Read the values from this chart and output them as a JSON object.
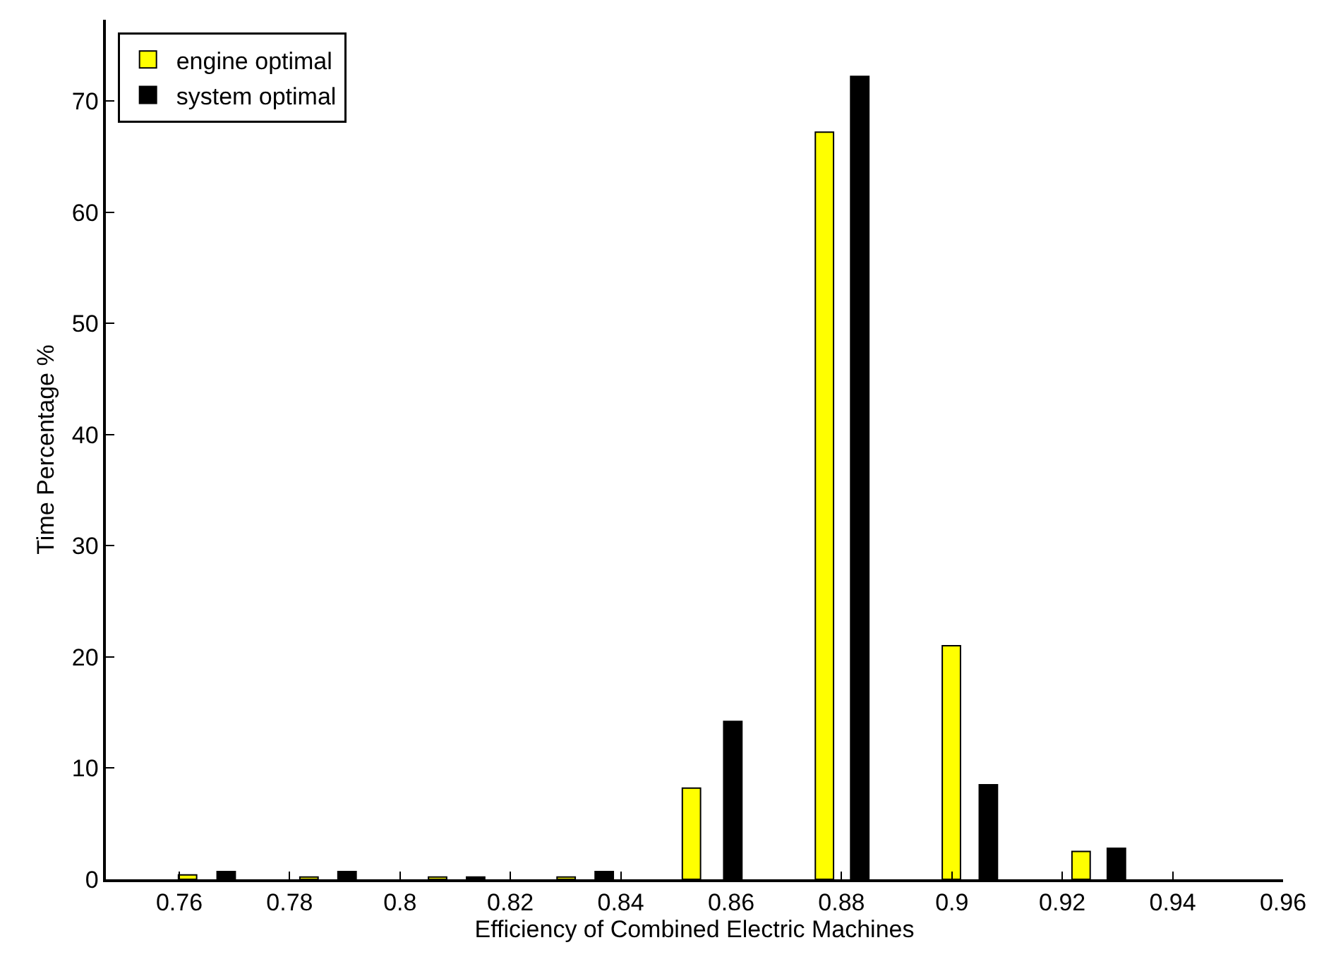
{
  "chart_data": {
    "type": "bar",
    "xlabel": "Efficiency of Combined Electric Machines",
    "ylabel": "Time Percentage %",
    "series": [
      {
        "name": "engine optimal",
        "color": "#ffff00",
        "x": [
          0.7615,
          0.7835,
          0.8068,
          0.8301,
          0.8528,
          0.8769,
          0.8999,
          0.9234
        ],
        "values": [
          0.4,
          0.2,
          0.2,
          0.2,
          8.2,
          67.2,
          21.0,
          2.5
        ]
      },
      {
        "name": "system optimal",
        "color": "#000000",
        "x": [
          0.7685,
          0.7904,
          0.8137,
          0.837,
          0.8603,
          0.8833,
          0.9066,
          0.9298
        ],
        "values": [
          0.7,
          0.7,
          0.2,
          0.7,
          14.2,
          72.2,
          8.5,
          2.8
        ]
      }
    ],
    "xlim": [
      0.7467,
      0.96
    ],
    "xticks": [
      {
        "value": 0.76,
        "label": "0.76"
      },
      {
        "value": 0.78,
        "label": "0.78"
      },
      {
        "value": 0.8,
        "label": "0.8"
      },
      {
        "value": 0.82,
        "label": "0.82"
      },
      {
        "value": 0.84,
        "label": "0.84"
      },
      {
        "value": 0.86,
        "label": "0.86"
      },
      {
        "value": 0.88,
        "label": "0.88"
      },
      {
        "value": 0.9,
        "label": "0.9"
      },
      {
        "value": 0.92,
        "label": "0.92"
      },
      {
        "value": 0.94,
        "label": "0.94"
      },
      {
        "value": 0.96,
        "label": "0.96"
      }
    ],
    "ylim": [
      0,
      77.3
    ],
    "yticks": [
      0,
      10,
      20,
      30,
      40,
      50,
      60,
      70
    ],
    "legend": "top left"
  }
}
